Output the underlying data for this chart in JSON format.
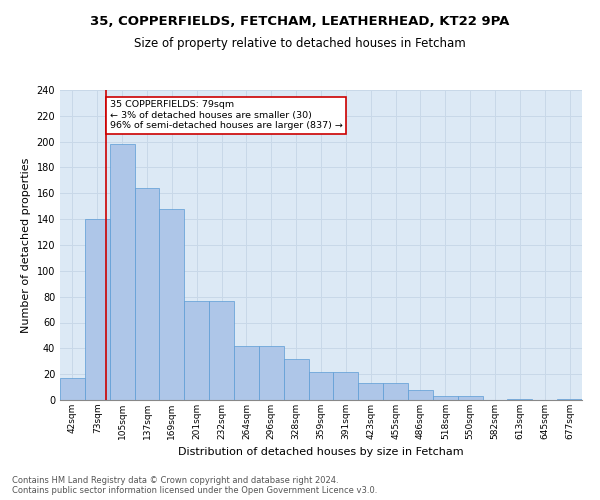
{
  "title1": "35, COPPERFIELDS, FETCHAM, LEATHERHEAD, KT22 9PA",
  "title2": "Size of property relative to detached houses in Fetcham",
  "xlabel": "Distribution of detached houses by size in Fetcham",
  "ylabel": "Number of detached properties",
  "footer1": "Contains HM Land Registry data © Crown copyright and database right 2024.",
  "footer2": "Contains public sector information licensed under the Open Government Licence v3.0.",
  "categories": [
    "42sqm",
    "73sqm",
    "105sqm",
    "137sqm",
    "169sqm",
    "201sqm",
    "232sqm",
    "264sqm",
    "296sqm",
    "328sqm",
    "359sqm",
    "391sqm",
    "423sqm",
    "455sqm",
    "486sqm",
    "518sqm",
    "550sqm",
    "582sqm",
    "613sqm",
    "645sqm",
    "677sqm"
  ],
  "values": [
    17,
    140,
    198,
    164,
    148,
    77,
    77,
    42,
    42,
    32,
    22,
    22,
    13,
    13,
    8,
    3,
    3,
    0,
    1,
    0,
    1
  ],
  "bar_color": "#aec6e8",
  "bar_edge_color": "#5b9bd5",
  "grid_color": "#c8d8e8",
  "background_color": "#dce9f5",
  "vline_x": 1.35,
  "vline_color": "#cc0000",
  "annotation_text": "35 COPPERFIELDS: 79sqm\n← 3% of detached houses are smaller (30)\n96% of semi-detached houses are larger (837) →",
  "annotation_box_color": "#cc0000",
  "ylim": [
    0,
    240
  ],
  "yticks": [
    0,
    20,
    40,
    60,
    80,
    100,
    120,
    140,
    160,
    180,
    200,
    220,
    240
  ]
}
